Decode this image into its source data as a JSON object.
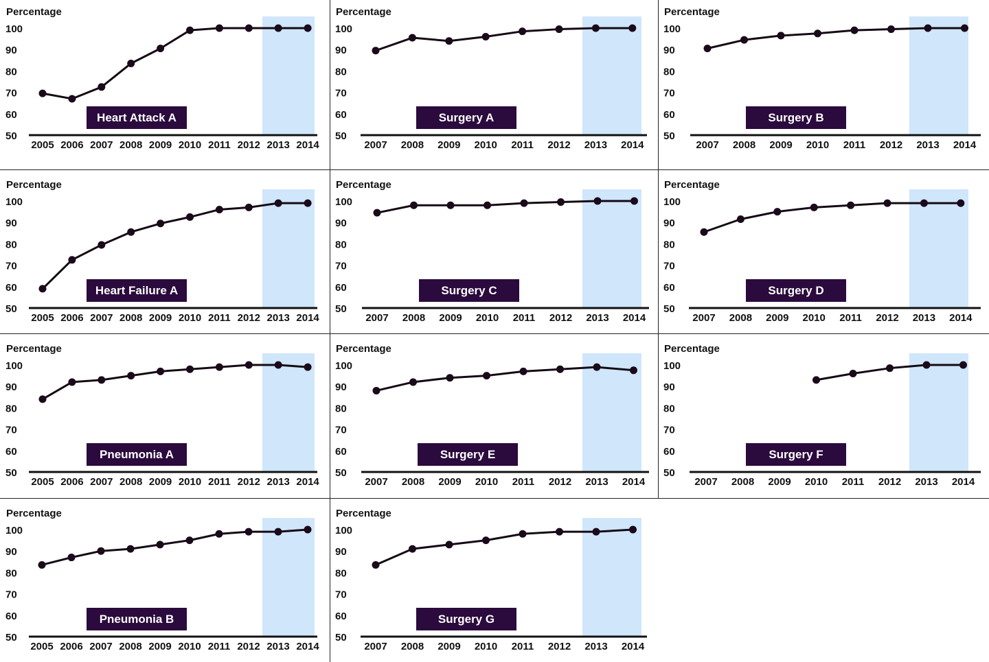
{
  "colors": {
    "line": "#140a14",
    "marker": "#1a0a1a",
    "shade": "#cfe6fb",
    "label_bg": "#2b0a3d",
    "label_text": "#ffffff",
    "axis": "#111111",
    "divider": "#222222"
  },
  "chart_data": [
    {
      "type": "line",
      "title": "Heart Attack A",
      "ylabel": "Percentage",
      "categories": [
        "2005",
        "2006",
        "2007",
        "2008",
        "2009",
        "2010",
        "2011",
        "2012",
        "2013",
        "2014"
      ],
      "values": [
        69.5,
        67,
        72.5,
        83.5,
        90.5,
        99,
        100,
        100,
        100,
        100
      ],
      "ylim": [
        50,
        100
      ],
      "yticks": [
        50,
        60,
        70,
        80,
        90,
        100
      ],
      "shaded_categories": [
        "2013",
        "2014"
      ]
    },
    {
      "type": "line",
      "title": "Surgery A",
      "ylabel": "Percentage",
      "categories": [
        "2007",
        "2008",
        "2009",
        "2010",
        "2011",
        "2012",
        "2013",
        "2014"
      ],
      "values": [
        89.5,
        95.5,
        94,
        96,
        98.5,
        99.5,
        100,
        100
      ],
      "ylim": [
        50,
        100
      ],
      "yticks": [
        50,
        60,
        70,
        80,
        90,
        100
      ],
      "shaded_categories": [
        "2013",
        "2014"
      ]
    },
    {
      "type": "line",
      "title": "Surgery B",
      "ylabel": "Percentage",
      "categories": [
        "2007",
        "2008",
        "2009",
        "2010",
        "2011",
        "2012",
        "2013",
        "2014"
      ],
      "values": [
        90.5,
        94.5,
        96.5,
        97.5,
        99,
        99.5,
        100,
        100
      ],
      "ylim": [
        50,
        100
      ],
      "yticks": [
        50,
        60,
        70,
        80,
        90,
        100
      ],
      "shaded_categories": [
        "2013",
        "2014"
      ]
    },
    {
      "type": "line",
      "title": "Heart Failure A",
      "ylabel": "Percentage",
      "categories": [
        "2005",
        "2006",
        "2007",
        "2008",
        "2009",
        "2010",
        "2011",
        "2012",
        "2013",
        "2014"
      ],
      "values": [
        59,
        72.5,
        79.5,
        85.5,
        89.5,
        92.5,
        96,
        97,
        99,
        99
      ],
      "ylim": [
        50,
        100
      ],
      "yticks": [
        50,
        60,
        70,
        80,
        90,
        100
      ],
      "shaded_categories": [
        "2013",
        "2014"
      ]
    },
    {
      "type": "line",
      "title": "Surgery C",
      "ylabel": "Percentage",
      "categories": [
        "2007",
        "2008",
        "2009",
        "2010",
        "2011",
        "2012",
        "2013",
        "2014"
      ],
      "values": [
        94.5,
        98,
        98,
        98,
        99,
        99.5,
        100,
        100
      ],
      "ylim": [
        50,
        100
      ],
      "yticks": [
        50,
        60,
        70,
        80,
        90,
        100
      ],
      "shaded_categories": [
        "2013",
        "2014"
      ]
    },
    {
      "type": "line",
      "title": "Surgery D",
      "ylabel": "Percentage",
      "categories": [
        "2007",
        "2008",
        "2009",
        "2010",
        "2011",
        "2012",
        "2013",
        "2014"
      ],
      "values": [
        85.5,
        91.5,
        95,
        97,
        98,
        99,
        99,
        99
      ],
      "ylim": [
        50,
        100
      ],
      "yticks": [
        50,
        60,
        70,
        80,
        90,
        100
      ],
      "shaded_categories": [
        "2013",
        "2014"
      ]
    },
    {
      "type": "line",
      "title": "Pneumonia A",
      "ylabel": "Percentage",
      "categories": [
        "2005",
        "2006",
        "2007",
        "2008",
        "2009",
        "2010",
        "2011",
        "2012",
        "2013",
        "2014"
      ],
      "values": [
        84,
        92,
        93,
        95,
        97,
        98,
        99,
        100,
        100,
        99
      ],
      "ylim": [
        50,
        100
      ],
      "yticks": [
        50,
        60,
        70,
        80,
        90,
        100
      ],
      "shaded_categories": [
        "2013",
        "2014"
      ]
    },
    {
      "type": "line",
      "title": "Surgery E",
      "ylabel": "Percentage",
      "categories": [
        "2007",
        "2008",
        "2009",
        "2010",
        "2011",
        "2012",
        "2013",
        "2014"
      ],
      "values": [
        88,
        92,
        94,
        95,
        97,
        98,
        99,
        97.5
      ],
      "ylim": [
        50,
        100
      ],
      "yticks": [
        50,
        60,
        70,
        80,
        90,
        100
      ],
      "shaded_categories": [
        "2013",
        "2014"
      ]
    },
    {
      "type": "line",
      "title": "Surgery F",
      "ylabel": "Percentage",
      "categories": [
        "2007",
        "2008",
        "2009",
        "2010",
        "2011",
        "2012",
        "2013",
        "2014"
      ],
      "values": [
        null,
        null,
        null,
        93,
        96,
        98.5,
        100,
        100
      ],
      "ylim": [
        50,
        100
      ],
      "yticks": [
        50,
        60,
        70,
        80,
        90,
        100
      ],
      "shaded_categories": [
        "2013",
        "2014"
      ]
    },
    {
      "type": "line",
      "title": "Pneumonia B",
      "ylabel": "Percentage",
      "categories": [
        "2005",
        "2006",
        "2007",
        "2008",
        "2009",
        "2010",
        "2011",
        "2012",
        "2013",
        "2014"
      ],
      "values": [
        83.5,
        87,
        90,
        91,
        93,
        95,
        98,
        99,
        99,
        100
      ],
      "ylim": [
        50,
        100
      ],
      "yticks": [
        50,
        60,
        70,
        80,
        90,
        100
      ],
      "shaded_categories": [
        "2013",
        "2014"
      ]
    },
    {
      "type": "line",
      "title": "Surgery G",
      "ylabel": "Percentage",
      "categories": [
        "2007",
        "2008",
        "2009",
        "2010",
        "2011",
        "2012",
        "2013",
        "2014"
      ],
      "values": [
        83.5,
        91,
        93,
        95,
        98,
        99,
        99,
        100
      ],
      "ylim": [
        50,
        100
      ],
      "yticks": [
        50,
        60,
        70,
        80,
        90,
        100
      ],
      "shaded_categories": [
        "2013",
        "2014"
      ]
    }
  ]
}
